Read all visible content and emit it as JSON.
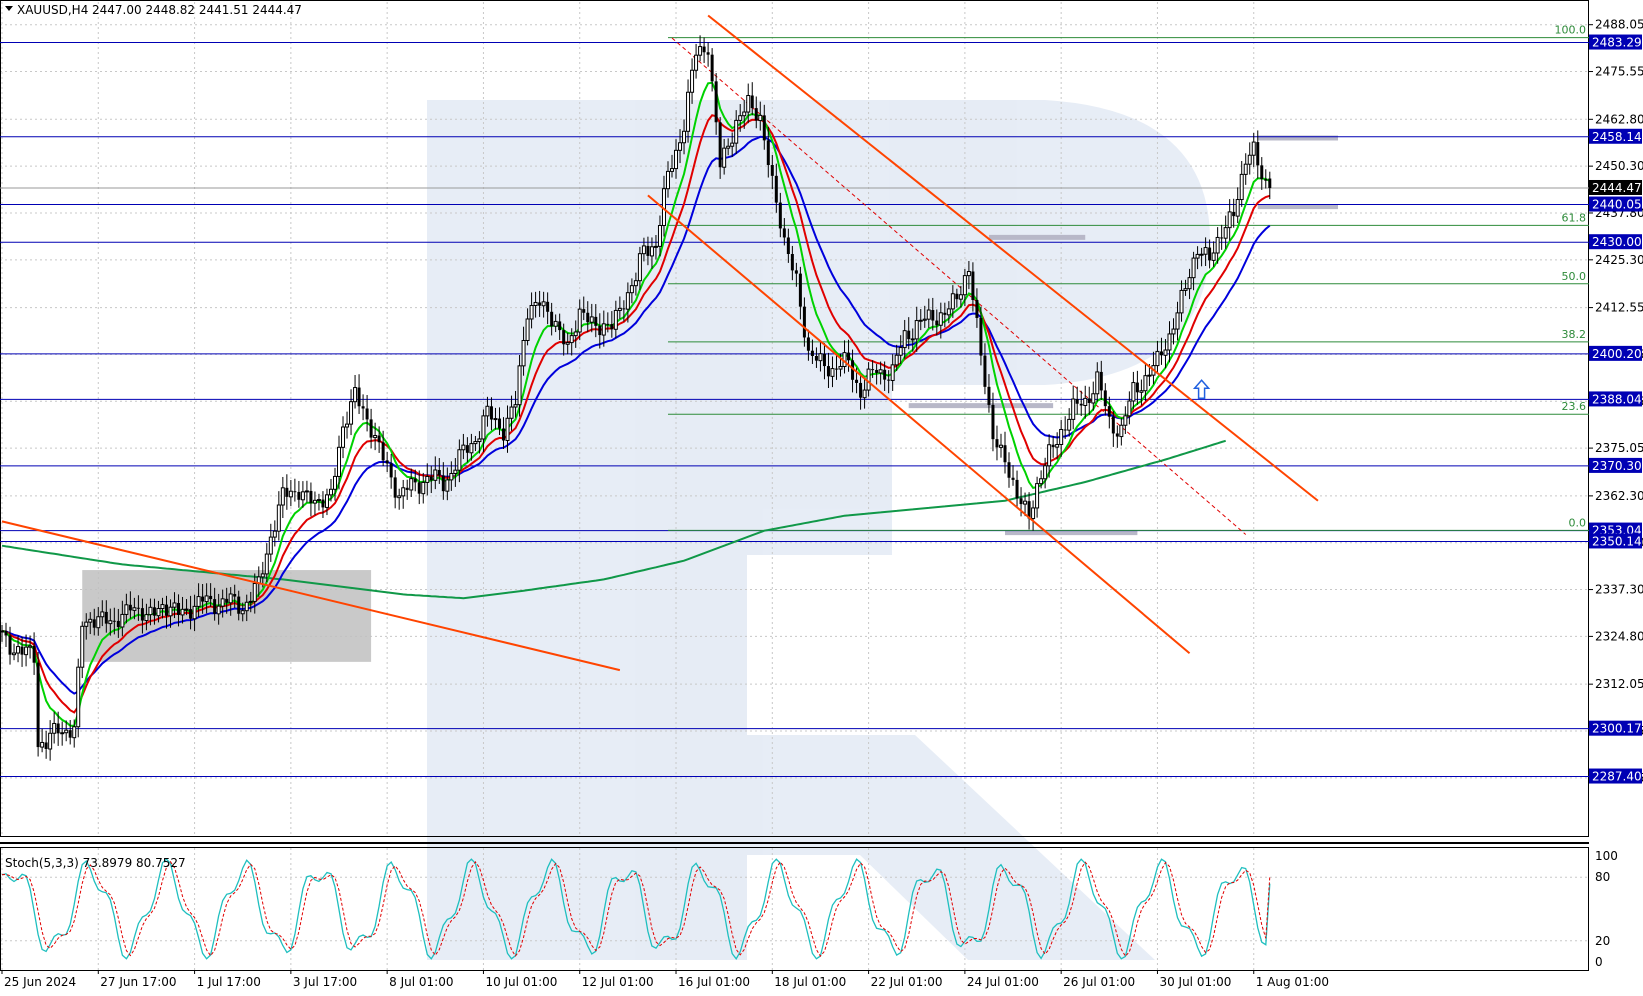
{
  "header": {
    "symbol": "XAUUSD,H4",
    "ohlc": "2447.00 2448.82 2441.51 2444.47",
    "menu_icon": "triangle-down-icon"
  },
  "colors": {
    "candle": "#000000",
    "grid": "#c8c8c8",
    "hline": "#0000b4",
    "current": "#9a9a9a",
    "ema_fast": "#00d200",
    "ema_mid": "#e00000",
    "ema_slow": "#0000dc",
    "ma_long": "#109848",
    "trendline": "#ff4400",
    "fib": "#2e8b3a",
    "stoch_main": "#1fbfbf",
    "stoch_signal": "#e00000"
  },
  "chart_data": {
    "type": "candlestick",
    "symbol": "XAUUSD",
    "timeframe": "H4",
    "ylim": [
      2286,
      2490
    ],
    "y_ticks": [
      2488.05,
      2475.55,
      2462.8,
      2450.3,
      2437.8,
      2425.3,
      2412.55,
      2400.05,
      2387.55,
      2375.05,
      2362.3,
      2349.8,
      2337.3,
      2324.8,
      2312.05,
      2299.55,
      2287.05
    ],
    "x_labels": [
      "25 Jun 2024",
      "27 Jun 17:00",
      "1 Jul 17:00",
      "3 Jul 17:00",
      "8 Jul 01:00",
      "10 Jul 01:00",
      "12 Jul 01:00",
      "16 Jul 01:00",
      "18 Jul 01:00",
      "22 Jul 01:00",
      "24 Jul 01:00",
      "26 Jul 01:00",
      "30 Jul 01:00",
      "1 Aug 01:00"
    ],
    "x_label_bars": [
      0,
      24,
      48,
      72,
      96,
      120,
      144,
      168,
      192,
      216,
      240,
      264,
      288,
      312
    ],
    "horizontal_levels": [
      {
        "price": 2483.29,
        "label": "2483.29"
      },
      {
        "price": 2458.14,
        "label": "2458.14"
      },
      {
        "price": 2440.05,
        "label": "2440.05"
      },
      {
        "price": 2430.0,
        "label": "2430.00"
      },
      {
        "price": 2400.2,
        "label": "2400.20"
      },
      {
        "price": 2388.04,
        "label": "2388.04"
      },
      {
        "price": 2370.3,
        "label": "2370.30"
      },
      {
        "price": 2353.04,
        "label": "2353.04"
      },
      {
        "price": 2350.14,
        "label": "2350.14"
      },
      {
        "price": 2300.17,
        "label": "2300.17"
      },
      {
        "price": 2287.4,
        "label": "2287.40"
      }
    ],
    "current_price": {
      "price": 2444.47,
      "label": "2444.47"
    },
    "fibonacci": {
      "from_bar": 166,
      "to_bar": 398,
      "levels": [
        {
          "label": "100.0",
          "price": 2484.6
        },
        {
          "label": "61.8",
          "price": 2434.5
        },
        {
          "label": "50.0",
          "price": 2418.9
        },
        {
          "label": "38.2",
          "price": 2403.4
        },
        {
          "label": "23.6",
          "price": 2384.1
        },
        {
          "label": "0.0",
          "price": 2353.1
        }
      ]
    },
    "trendlines": [
      {
        "x1": 0,
        "y1": 2355.5,
        "x2": 154,
        "y2": 2315.8
      },
      {
        "x1": 176,
        "y1": 2490.5,
        "x2": 328,
        "y2": 2361.0
      },
      {
        "x1": 161,
        "y1": 2442.5,
        "x2": 296,
        "y2": 2320.3
      }
    ],
    "dashed_line": {
      "x1": 167,
      "y1": 2484.5,
      "x2": 310,
      "y2": 2352.0
    },
    "zones": [
      {
        "x1": 20,
        "x2": 92,
        "y_top": 2342.5,
        "y_bottom": 2318.0,
        "color": "#c0c0c0"
      }
    ],
    "segments": [
      {
        "x1": 246,
        "x2": 270,
        "price": 2431.3
      },
      {
        "x1": 226,
        "x2": 262,
        "price": 2386.4
      },
      {
        "x1": 250,
        "x2": 283,
        "price": 2352.5
      },
      {
        "x1": 313,
        "x2": 333,
        "price": 2457.8
      },
      {
        "x1": 313,
        "x2": 333,
        "price": 2439.5
      }
    ],
    "arrow": {
      "bar": 299,
      "price": 2390.5
    },
    "candles": [],
    "ema_fast": [],
    "ema_mid": [],
    "ema_slow": [],
    "ma_long": [],
    "stochastic": {
      "label": "Stoch(5,3,3) 73.8979 80.7527",
      "main_value": 73.8979,
      "signal_value": 80.7527,
      "ylim": [
        0,
        100
      ],
      "ticks": [
        100,
        80,
        20,
        0
      ],
      "main": [],
      "signal": []
    }
  }
}
